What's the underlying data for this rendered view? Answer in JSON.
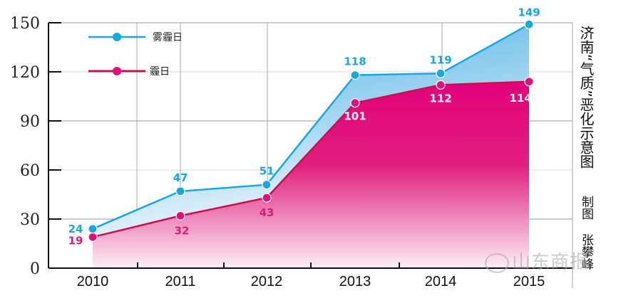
{
  "chart_data": {
    "type": "area",
    "title": "济南“气质”恶化示意图",
    "credit": "制图 张攀峰",
    "categories": [
      "2010",
      "2011",
      "2012",
      "2013",
      "2014",
      "2015"
    ],
    "series": [
      {
        "name": "雾霾日",
        "values": [
          24,
          47,
          51,
          118,
          119,
          149
        ],
        "color": "#1ba6dd"
      },
      {
        "name": "霾日",
        "values": [
          19,
          32,
          43,
          101,
          112,
          114
        ],
        "color": "#d81b7d"
      }
    ],
    "xlabel": "",
    "ylabel": "",
    "ylim": [
      0,
      150
    ],
    "yticks": [
      "0",
      "30",
      "60",
      "90",
      "120",
      "150"
    ],
    "legend_position": "top-left",
    "grid": true
  },
  "legend": {
    "items": [
      {
        "label": "雾霾日"
      },
      {
        "label": "霾日"
      }
    ]
  },
  "side": {
    "title": "济南“气质”恶化示意图",
    "credit_line1": "制图",
    "credit_line2": "张攀峰"
  },
  "watermark": {
    "text": "山东商报"
  },
  "colors": {
    "haze_line": "#1ba6dd",
    "haze_fill_top": "#5bb8e6",
    "haze_fill_bottom": "#e8f4fb",
    "smog_line": "#d0104f",
    "smog_marker": "#e0107a",
    "smog_fill_top": "#e0007a",
    "smog_fill_bottom": "#fde9f1"
  }
}
